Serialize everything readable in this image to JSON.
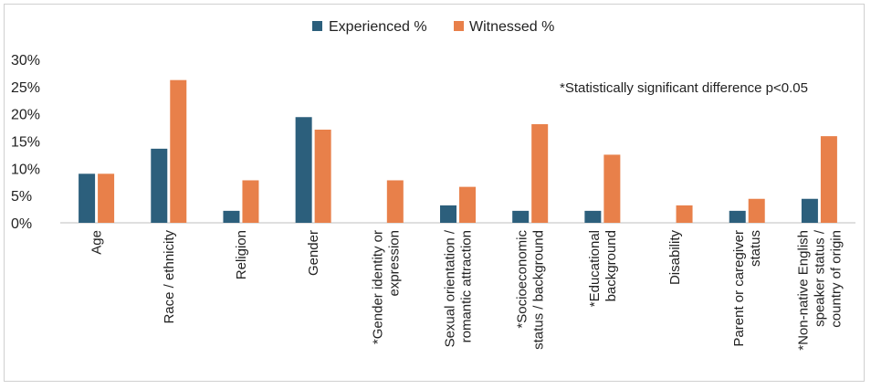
{
  "chart_data": {
    "type": "bar",
    "categories": [
      [
        "Age"
      ],
      [
        "Race / ethnicity"
      ],
      [
        "Religion"
      ],
      [
        "Gender"
      ],
      [
        "*Gender identity or",
        "expression"
      ],
      [
        "Sexual orientation /",
        "romantic attraction"
      ],
      [
        "*Socioeconomic",
        "status / background"
      ],
      [
        "*Educational",
        "background"
      ],
      [
        "Disability"
      ],
      [
        "Parent or caregiver",
        "status"
      ],
      [
        "*Non-native English",
        "speaker status /",
        "country of origin"
      ]
    ],
    "series": [
      {
        "name": "Experienced %",
        "color": "#2c5f7c",
        "values": [
          9.0,
          13.6,
          2.2,
          19.4,
          0.0,
          3.2,
          2.2,
          2.2,
          0.0,
          2.2,
          4.4
        ]
      },
      {
        "name": "Witnessed %",
        "color": "#e8804a",
        "values": [
          9.0,
          26.2,
          7.8,
          17.1,
          7.8,
          6.6,
          18.1,
          12.5,
          3.2,
          4.4,
          15.9
        ]
      }
    ],
    "ylim": [
      0,
      30
    ],
    "yticks": [
      "0%",
      "5%",
      "10%",
      "15%",
      "20%",
      "25%",
      "30%"
    ],
    "ytick_values": [
      0,
      5,
      10,
      15,
      20,
      25,
      30
    ],
    "grid": false,
    "legend_position": "top-center",
    "annotation": "*Statistically significant difference p<0.05"
  }
}
